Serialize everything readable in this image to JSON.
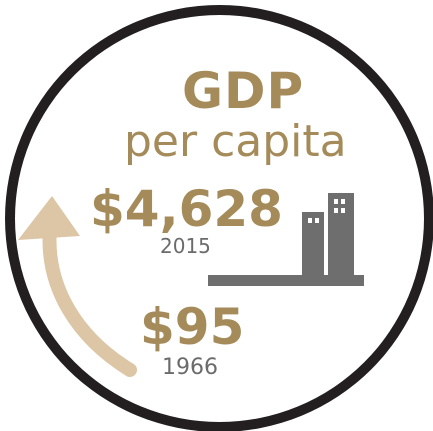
{
  "colors": {
    "gold": "#a58b5a",
    "arrow": "#dcc6a6",
    "building": "#6e6e6e",
    "ring": "#231f20",
    "year_text": "#6b6b6b"
  },
  "title": {
    "main": "GDP",
    "sub": "per capita"
  },
  "high": {
    "value": "$4,628",
    "year": "2015"
  },
  "low": {
    "value": "$95",
    "year": "1966"
  },
  "icons": {
    "growth_arrow": "curved-up-arrow-icon",
    "buildings": "buildings-icon"
  }
}
